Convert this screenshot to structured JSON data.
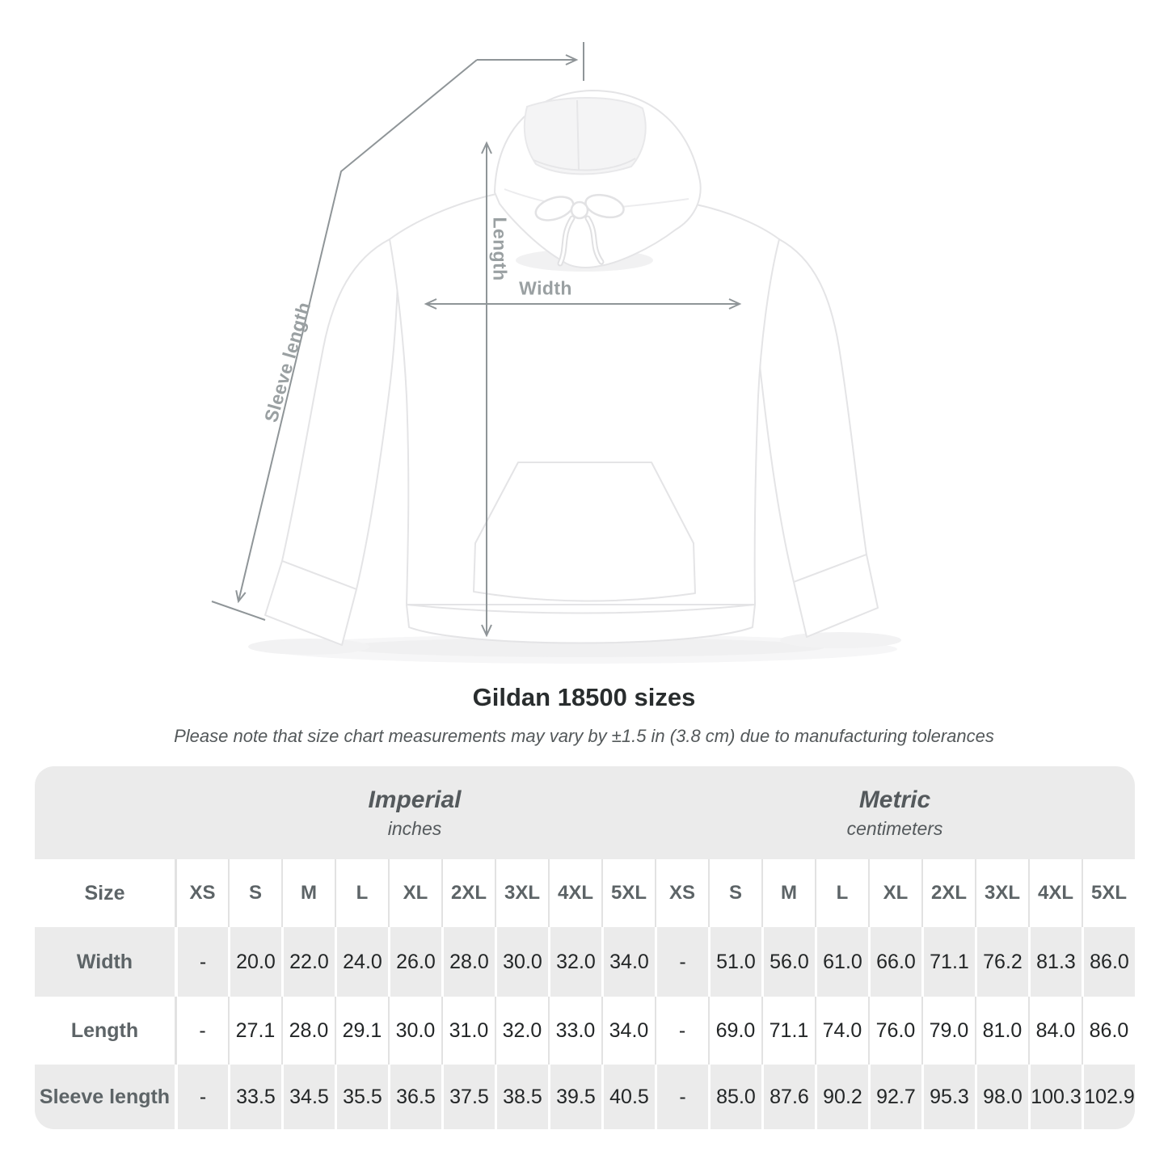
{
  "diagram": {
    "length_label": "Length",
    "width_label": "Width",
    "sleeve_label": "Sleeve length"
  },
  "chart_data": {
    "type": "table",
    "title": "Gildan 18500 sizes",
    "note": "Please note that size chart measurements may vary by ±1.5 in (3.8 cm) due to manufacturing tolerances",
    "size_column_header": "Size",
    "sizes": [
      "XS",
      "S",
      "M",
      "L",
      "XL",
      "2XL",
      "3XL",
      "4XL",
      "5XL"
    ],
    "sections": [
      {
        "name": "Imperial",
        "unit": "inches"
      },
      {
        "name": "Metric",
        "unit": "centimeters"
      }
    ],
    "rows": [
      {
        "label": "Width",
        "imperial": [
          "-",
          "20.0",
          "22.0",
          "24.0",
          "26.0",
          "28.0",
          "30.0",
          "32.0",
          "34.0"
        ],
        "metric": [
          "-",
          "51.0",
          "56.0",
          "61.0",
          "66.0",
          "71.1",
          "76.2",
          "81.3",
          "86.0"
        ]
      },
      {
        "label": "Length",
        "imperial": [
          "-",
          "27.1",
          "28.0",
          "29.1",
          "30.0",
          "31.0",
          "32.0",
          "33.0",
          "34.0"
        ],
        "metric": [
          "-",
          "69.0",
          "71.1",
          "74.0",
          "76.0",
          "79.0",
          "81.0",
          "84.0",
          "86.0"
        ]
      },
      {
        "label": "Sleeve length",
        "imperial": [
          "-",
          "33.5",
          "34.5",
          "35.5",
          "36.5",
          "37.5",
          "38.5",
          "39.5",
          "40.5"
        ],
        "metric": [
          "-",
          "85.0",
          "87.6",
          "90.2",
          "92.7",
          "95.3",
          "98.0",
          "100.3",
          "102.9"
        ]
      }
    ]
  },
  "colors": {
    "background": "#ffffff",
    "table_gray": "#ebebeb",
    "separator_on_white": "#e2e2e2",
    "separator_on_gray": "#ffffff",
    "header_text": "#5d6467",
    "value_text": "#232627",
    "title_text": "#292d2e",
    "note_text": "#53585a",
    "measure_line": "#8f9598",
    "measure_label": "#9aa0a2",
    "garment_outline": "#e4e4e6"
  }
}
